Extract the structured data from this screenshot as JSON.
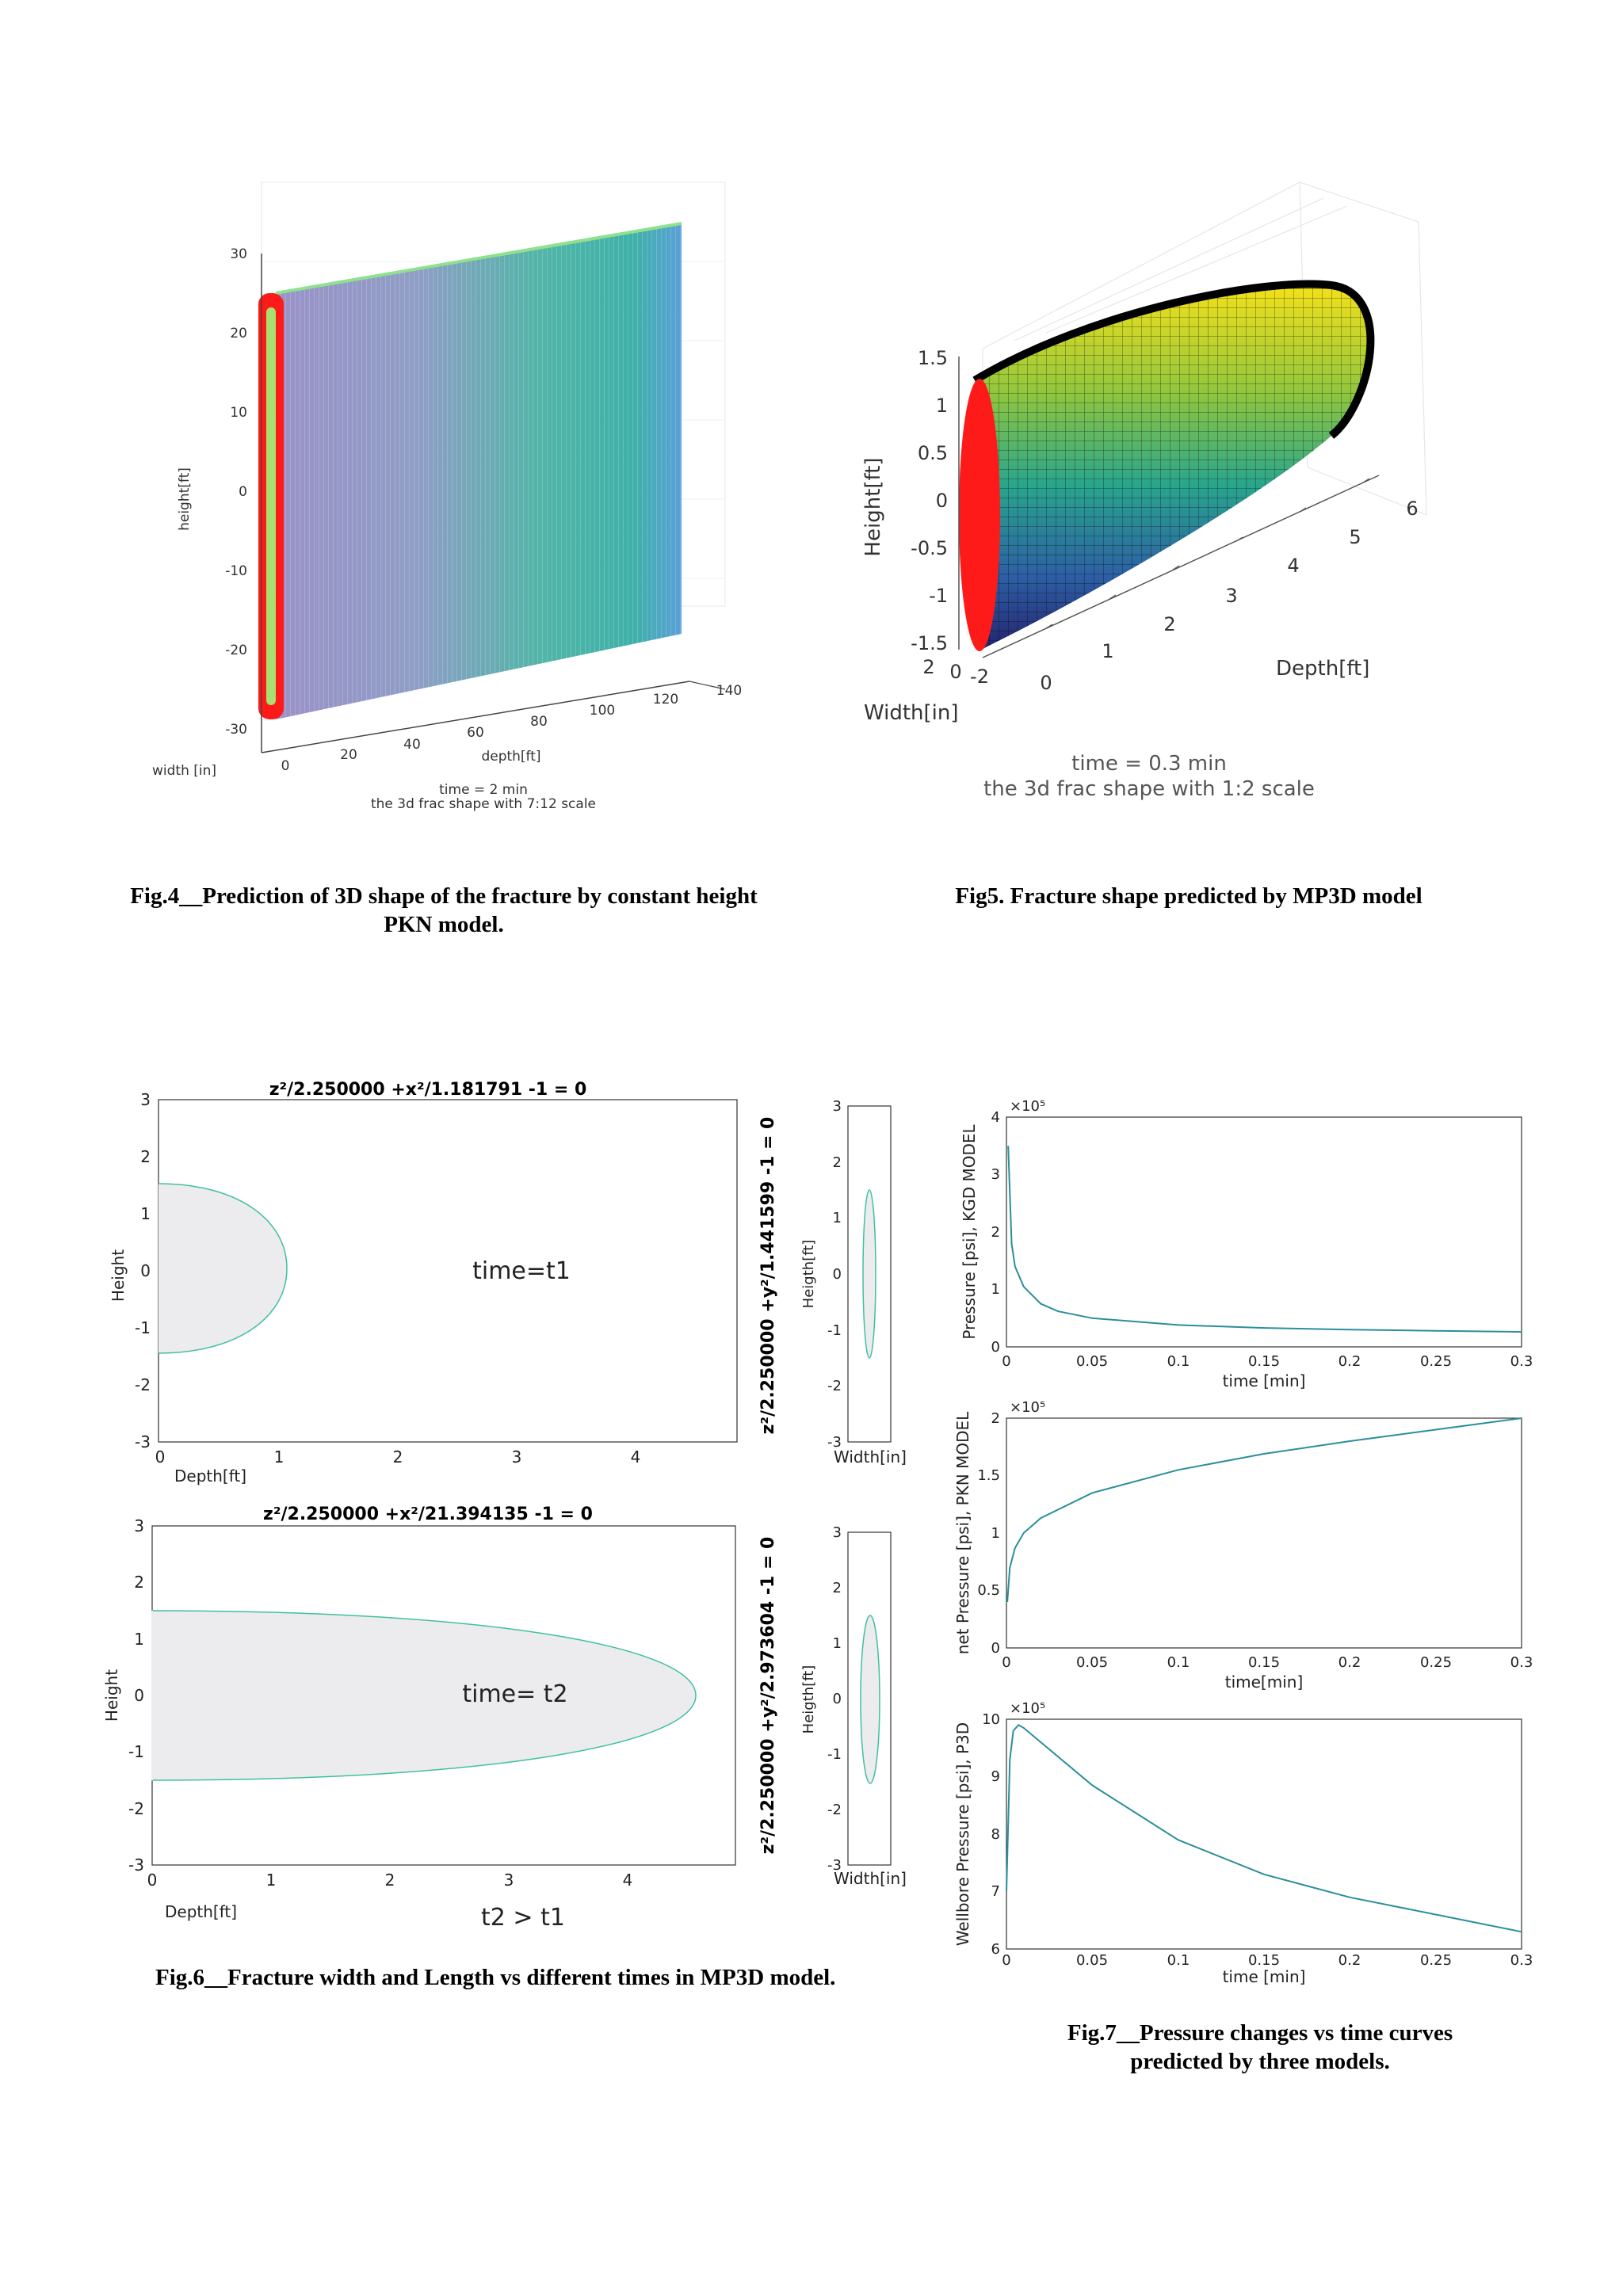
{
  "fig4": {
    "zticks": [
      "30",
      "20",
      "10",
      "0",
      "-10",
      "-20",
      "-30"
    ],
    "xticks": [
      "0",
      "20",
      "40",
      "60",
      "80",
      "100",
      "120",
      "140"
    ],
    "zlabel": "height[ft]",
    "ylabel": "width [in]",
    "xlabel": "depth[ft]",
    "note1": "time = 2   min",
    "note2": "the 3d frac shape with 7:12 scale",
    "caption_line1": "Fig.4__Prediction of 3D shape of the fracture by constant height",
    "caption_line2": "PKN model."
  },
  "fig5": {
    "zticks": [
      "1.5",
      "1",
      "0.5",
      "0",
      "-0.5",
      "-1",
      "-1.5"
    ],
    "xticks": [
      "0",
      "1",
      "2",
      "3",
      "4",
      "5",
      "6"
    ],
    "yticks": [
      "2",
      "0",
      "-2"
    ],
    "zlabel": "Height[ft]",
    "xlabel": "Depth[ft]",
    "ylabel": "Width[in]",
    "note1": "time = 0.3   min",
    "note2": "the 3d frac shape with 1:2 scale",
    "caption": "Fig5. Fracture shape predicted by MP3D model"
  },
  "fig6": {
    "top": {
      "title_main": "z²/2.250000 +x²/1.181791 -1 = 0",
      "ylabel": "Height",
      "xlabel": "Depth[ft]",
      "annotation": "time=t1",
      "yticks": [
        "3",
        "2",
        "1",
        "0",
        "-1",
        "-2",
        "-3"
      ],
      "xticks": [
        "0",
        "1",
        "2",
        "3",
        "4"
      ],
      "side_title": "z²/2.250000 +y²/1.441599 -1 = 0",
      "side_ylabel": "Heigth[ft]",
      "side_xlabel": "Width[in]"
    },
    "bottom": {
      "title_main": "z²/2.250000 +x²/21.394135 -1 = 0",
      "ylabel": "Height",
      "xlabel": "Depth[ft]",
      "annotation": "time= t2",
      "yticks": [
        "3",
        "2",
        "1",
        "0",
        "-1",
        "-2",
        "-3"
      ],
      "xticks": [
        "0",
        "1",
        "2",
        "3",
        "4"
      ],
      "side_title": "z²/2.250000 +y²/2.973604 -1 = 0",
      "side_ylabel": "Heigth[ft]",
      "side_xlabel": "Width[in]",
      "compare": "t2 > t1"
    },
    "caption": "Fig.6__Fracture width and Length vs different times in MP3D model."
  },
  "fig7": {
    "exponent": "×10⁵",
    "kgd": {
      "ylabel": "Pressure [psi], KGD MODEL",
      "xlabel": "time [min]",
      "yticks": [
        "4",
        "3",
        "2",
        "1",
        "0"
      ],
      "xticks": [
        "0",
        "0.05",
        "0.1",
        "0.15",
        "0.2",
        "0.25",
        "0.3"
      ]
    },
    "pkn": {
      "ylabel": "net Pressure [psi], PKN MODEL",
      "xlabel": "time[min]",
      "yticks": [
        "2",
        "1.5",
        "1",
        "0.5",
        "0"
      ],
      "xticks": [
        "0",
        "0.05",
        "0.1",
        "0.15",
        "0.2",
        "0.25",
        "0.3"
      ]
    },
    "p3d": {
      "ylabel": "Wellbore Pressure [psi], P3D",
      "xlabel": "time [min]",
      "yticks": [
        "10",
        "9",
        "8",
        "7",
        "6"
      ],
      "xticks": [
        "0",
        "0.05",
        "0.1",
        "0.15",
        "0.2",
        "0.25",
        "0.3"
      ]
    },
    "caption_line1": "Fig.7__Pressure changes vs time curves",
    "caption_line2": "predicted by three models."
  },
  "chart_data": [
    {
      "type": "line",
      "xlabel": "time [min]",
      "ylabel": "Pressure [psi], KGD MODEL",
      "xlim": [
        0,
        0.3
      ],
      "ylim": [
        0,
        4
      ],
      "y_unit": "×10⁵",
      "x": [
        0.001,
        0.003,
        0.005,
        0.01,
        0.02,
        0.03,
        0.05,
        0.1,
        0.15,
        0.2,
        0.25,
        0.3
      ],
      "values": [
        3.5,
        1.8,
        1.4,
        1.05,
        0.75,
        0.62,
        0.5,
        0.38,
        0.33,
        0.3,
        0.28,
        0.26
      ]
    },
    {
      "type": "line",
      "xlabel": "time[min]",
      "ylabel": "net Pressure [psi], PKN MODEL",
      "xlim": [
        0,
        0.3
      ],
      "ylim": [
        0,
        2
      ],
      "y_unit": "×10⁵",
      "x": [
        0.0005,
        0.002,
        0.005,
        0.01,
        0.02,
        0.05,
        0.1,
        0.15,
        0.2,
        0.25,
        0.3
      ],
      "values": [
        0.4,
        0.7,
        0.87,
        1.0,
        1.13,
        1.35,
        1.55,
        1.69,
        1.8,
        1.9,
        2.0
      ]
    },
    {
      "type": "line",
      "xlabel": "time [min]",
      "ylabel": "Wellbore Pressure [psi], P3D",
      "xlim": [
        0,
        0.3
      ],
      "ylim": [
        6,
        10
      ],
      "y_unit": "×10⁵",
      "x": [
        0,
        0.002,
        0.004,
        0.007,
        0.01,
        0.02,
        0.05,
        0.1,
        0.15,
        0.2,
        0.25,
        0.3
      ],
      "values": [
        7.0,
        9.3,
        9.8,
        9.9,
        9.85,
        9.6,
        8.85,
        7.9,
        7.3,
        6.9,
        6.6,
        6.3
      ]
    }
  ]
}
